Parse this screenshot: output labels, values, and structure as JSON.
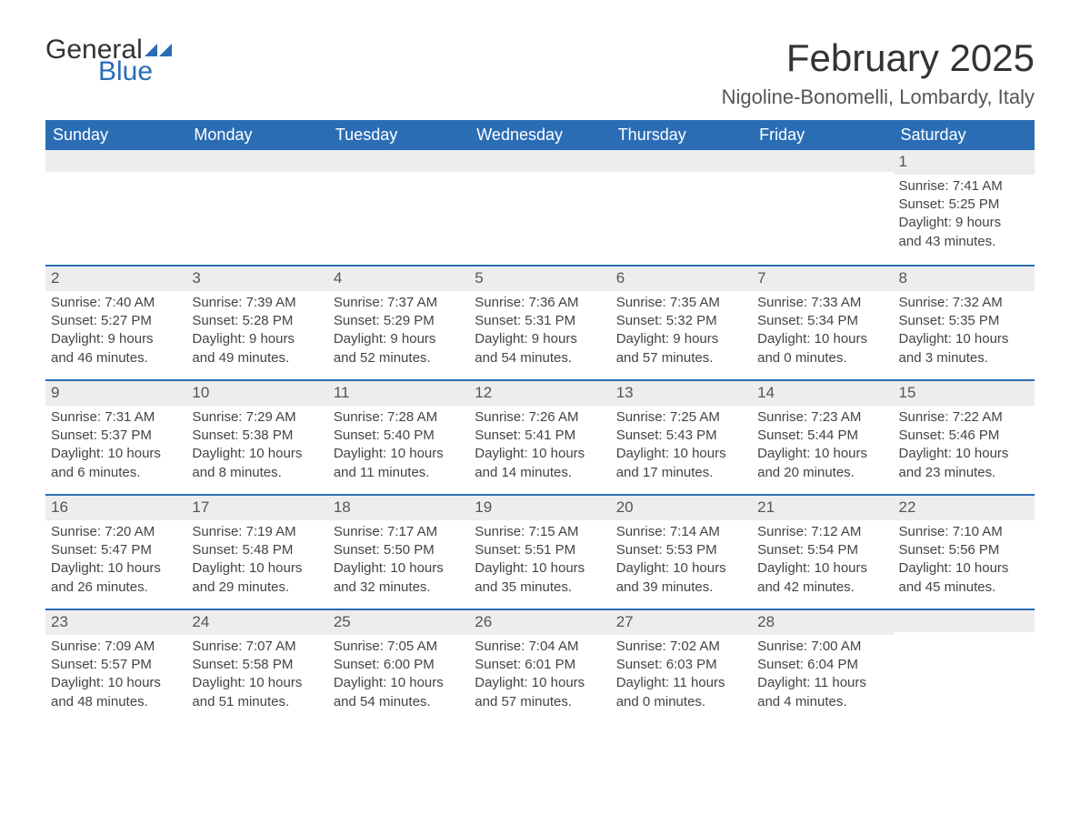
{
  "logo": {
    "line1": "General",
    "line2": "Blue",
    "fill": "#2a6db5"
  },
  "title": "February 2025",
  "location": "Nigoline-Bonomelli, Lombardy, Italy",
  "colors": {
    "header_bg": "#2a6db5",
    "header_text": "#ffffff",
    "daynum_bg": "#ededed",
    "week_border": "#2a6db5",
    "body_text": "#444444"
  },
  "day_headers": [
    "Sunday",
    "Monday",
    "Tuesday",
    "Wednesday",
    "Thursday",
    "Friday",
    "Saturday"
  ],
  "weeks": [
    [
      null,
      null,
      null,
      null,
      null,
      null,
      {
        "n": "1",
        "sr": "Sunrise: 7:41 AM",
        "ss": "Sunset: 5:25 PM",
        "d1": "Daylight: 9 hours",
        "d2": "and 43 minutes."
      }
    ],
    [
      {
        "n": "2",
        "sr": "Sunrise: 7:40 AM",
        "ss": "Sunset: 5:27 PM",
        "d1": "Daylight: 9 hours",
        "d2": "and 46 minutes."
      },
      {
        "n": "3",
        "sr": "Sunrise: 7:39 AM",
        "ss": "Sunset: 5:28 PM",
        "d1": "Daylight: 9 hours",
        "d2": "and 49 minutes."
      },
      {
        "n": "4",
        "sr": "Sunrise: 7:37 AM",
        "ss": "Sunset: 5:29 PM",
        "d1": "Daylight: 9 hours",
        "d2": "and 52 minutes."
      },
      {
        "n": "5",
        "sr": "Sunrise: 7:36 AM",
        "ss": "Sunset: 5:31 PM",
        "d1": "Daylight: 9 hours",
        "d2": "and 54 minutes."
      },
      {
        "n": "6",
        "sr": "Sunrise: 7:35 AM",
        "ss": "Sunset: 5:32 PM",
        "d1": "Daylight: 9 hours",
        "d2": "and 57 minutes."
      },
      {
        "n": "7",
        "sr": "Sunrise: 7:33 AM",
        "ss": "Sunset: 5:34 PM",
        "d1": "Daylight: 10 hours",
        "d2": "and 0 minutes."
      },
      {
        "n": "8",
        "sr": "Sunrise: 7:32 AM",
        "ss": "Sunset: 5:35 PM",
        "d1": "Daylight: 10 hours",
        "d2": "and 3 minutes."
      }
    ],
    [
      {
        "n": "9",
        "sr": "Sunrise: 7:31 AM",
        "ss": "Sunset: 5:37 PM",
        "d1": "Daylight: 10 hours",
        "d2": "and 6 minutes."
      },
      {
        "n": "10",
        "sr": "Sunrise: 7:29 AM",
        "ss": "Sunset: 5:38 PM",
        "d1": "Daylight: 10 hours",
        "d2": "and 8 minutes."
      },
      {
        "n": "11",
        "sr": "Sunrise: 7:28 AM",
        "ss": "Sunset: 5:40 PM",
        "d1": "Daylight: 10 hours",
        "d2": "and 11 minutes."
      },
      {
        "n": "12",
        "sr": "Sunrise: 7:26 AM",
        "ss": "Sunset: 5:41 PM",
        "d1": "Daylight: 10 hours",
        "d2": "and 14 minutes."
      },
      {
        "n": "13",
        "sr": "Sunrise: 7:25 AM",
        "ss": "Sunset: 5:43 PM",
        "d1": "Daylight: 10 hours",
        "d2": "and 17 minutes."
      },
      {
        "n": "14",
        "sr": "Sunrise: 7:23 AM",
        "ss": "Sunset: 5:44 PM",
        "d1": "Daylight: 10 hours",
        "d2": "and 20 minutes."
      },
      {
        "n": "15",
        "sr": "Sunrise: 7:22 AM",
        "ss": "Sunset: 5:46 PM",
        "d1": "Daylight: 10 hours",
        "d2": "and 23 minutes."
      }
    ],
    [
      {
        "n": "16",
        "sr": "Sunrise: 7:20 AM",
        "ss": "Sunset: 5:47 PM",
        "d1": "Daylight: 10 hours",
        "d2": "and 26 minutes."
      },
      {
        "n": "17",
        "sr": "Sunrise: 7:19 AM",
        "ss": "Sunset: 5:48 PM",
        "d1": "Daylight: 10 hours",
        "d2": "and 29 minutes."
      },
      {
        "n": "18",
        "sr": "Sunrise: 7:17 AM",
        "ss": "Sunset: 5:50 PM",
        "d1": "Daylight: 10 hours",
        "d2": "and 32 minutes."
      },
      {
        "n": "19",
        "sr": "Sunrise: 7:15 AM",
        "ss": "Sunset: 5:51 PM",
        "d1": "Daylight: 10 hours",
        "d2": "and 35 minutes."
      },
      {
        "n": "20",
        "sr": "Sunrise: 7:14 AM",
        "ss": "Sunset: 5:53 PM",
        "d1": "Daylight: 10 hours",
        "d2": "and 39 minutes."
      },
      {
        "n": "21",
        "sr": "Sunrise: 7:12 AM",
        "ss": "Sunset: 5:54 PM",
        "d1": "Daylight: 10 hours",
        "d2": "and 42 minutes."
      },
      {
        "n": "22",
        "sr": "Sunrise: 7:10 AM",
        "ss": "Sunset: 5:56 PM",
        "d1": "Daylight: 10 hours",
        "d2": "and 45 minutes."
      }
    ],
    [
      {
        "n": "23",
        "sr": "Sunrise: 7:09 AM",
        "ss": "Sunset: 5:57 PM",
        "d1": "Daylight: 10 hours",
        "d2": "and 48 minutes."
      },
      {
        "n": "24",
        "sr": "Sunrise: 7:07 AM",
        "ss": "Sunset: 5:58 PM",
        "d1": "Daylight: 10 hours",
        "d2": "and 51 minutes."
      },
      {
        "n": "25",
        "sr": "Sunrise: 7:05 AM",
        "ss": "Sunset: 6:00 PM",
        "d1": "Daylight: 10 hours",
        "d2": "and 54 minutes."
      },
      {
        "n": "26",
        "sr": "Sunrise: 7:04 AM",
        "ss": "Sunset: 6:01 PM",
        "d1": "Daylight: 10 hours",
        "d2": "and 57 minutes."
      },
      {
        "n": "27",
        "sr": "Sunrise: 7:02 AM",
        "ss": "Sunset: 6:03 PM",
        "d1": "Daylight: 11 hours",
        "d2": "and 0 minutes."
      },
      {
        "n": "28",
        "sr": "Sunrise: 7:00 AM",
        "ss": "Sunset: 6:04 PM",
        "d1": "Daylight: 11 hours",
        "d2": "and 4 minutes."
      },
      null
    ]
  ]
}
